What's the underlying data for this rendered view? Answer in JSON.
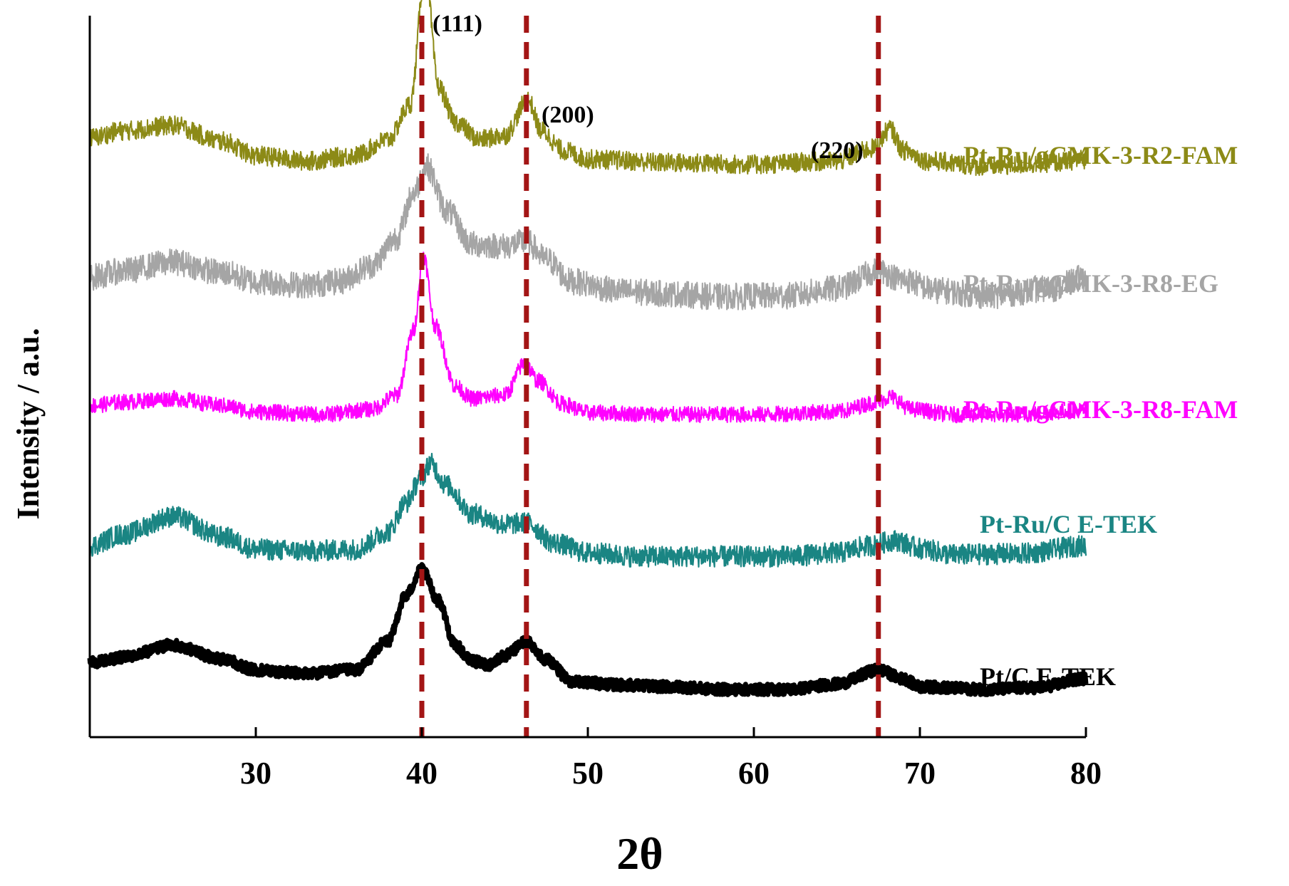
{
  "chart_data": {
    "type": "line",
    "title": "",
    "xlabel": "2θ",
    "ylabel": "Intensity / a.u.",
    "xlim": [
      20,
      80
    ],
    "xticks": [
      30,
      40,
      50,
      60,
      70,
      80
    ],
    "yticks": [],
    "grid": false,
    "colors": {
      "axis": "#000000",
      "reference_line": "#a31515",
      "Pt/C E-TEK": "#000000",
      "Pt-Ru/C E-TEK": "#1a8583",
      "Pt-Ru/gCMK-3-R8-FAM": "#ff00ff",
      "Pt-Ru/gCMK-3-R8-EG": "#a5a5a5",
      "Pt-Ru/gCMK-3-R2-FAM": "#8c8a16"
    },
    "reference_lines": [
      {
        "x": 40.0,
        "label": "(111)"
      },
      {
        "x": 46.3,
        "label": "(200)"
      },
      {
        "x": 67.5,
        "label": "(220)"
      }
    ],
    "series": [
      {
        "name": "Pt/C E-TEK",
        "label": "Pt/C E-TEK",
        "baseline": 0.0,
        "noise": 0.6,
        "points": [
          [
            20,
            3.0
          ],
          [
            22,
            3.6
          ],
          [
            25,
            5.0
          ],
          [
            28,
            3.4
          ],
          [
            30,
            2.2
          ],
          [
            33,
            1.8
          ],
          [
            36,
            2.2
          ],
          [
            38,
            5.5
          ],
          [
            39,
            10.5
          ],
          [
            40,
            13.5
          ],
          [
            41,
            10.0
          ],
          [
            42,
            5.0
          ],
          [
            43,
            3.2
          ],
          [
            44,
            2.8
          ],
          [
            45,
            3.8
          ],
          [
            46.3,
            5.4
          ],
          [
            47.5,
            3.4
          ],
          [
            49,
            0.9
          ],
          [
            52,
            0.5
          ],
          [
            55,
            0.3
          ],
          [
            58,
            0.0
          ],
          [
            62,
            0.0
          ],
          [
            65,
            0.6
          ],
          [
            67.5,
            2.2
          ],
          [
            69,
            1.2
          ],
          [
            70,
            0.3
          ],
          [
            74,
            0.0
          ],
          [
            77,
            0.2
          ],
          [
            80,
            1.2
          ]
        ]
      },
      {
        "name": "Pt-Ru/C E-TEK",
        "label": "Pt-Ru/C E-TEK",
        "baseline": 15.0,
        "noise": 1.2,
        "points": [
          [
            20,
            1.2
          ],
          [
            22,
            2.5
          ],
          [
            25,
            4.5
          ],
          [
            28,
            2.2
          ],
          [
            30,
            0.8
          ],
          [
            33,
            0.6
          ],
          [
            36,
            0.8
          ],
          [
            38,
            2.8
          ],
          [
            39,
            6.0
          ],
          [
            40,
            9.0
          ],
          [
            40.5,
            10.5
          ],
          [
            41.5,
            8.0
          ],
          [
            43,
            4.8
          ],
          [
            45,
            3.6
          ],
          [
            46.3,
            3.8
          ],
          [
            48,
            1.5
          ],
          [
            50,
            0.4
          ],
          [
            53,
            0.0
          ],
          [
            57,
            0.0
          ],
          [
            62,
            0.0
          ],
          [
            65,
            0.4
          ],
          [
            67,
            1.2
          ],
          [
            68.5,
            1.8
          ],
          [
            70,
            0.9
          ],
          [
            72,
            0.2
          ],
          [
            76,
            0.3
          ],
          [
            80,
            1.2
          ]
        ]
      },
      {
        "name": "Pt-Ru/gCMK-3-R8-FAM",
        "label": "Pt-Ru/gCMK-3-R8-FAM",
        "baseline": 31.0,
        "noise": 0.9,
        "points": [
          [
            20,
            1.0
          ],
          [
            22,
            1.4
          ],
          [
            25,
            1.8
          ],
          [
            28,
            1.0
          ],
          [
            30,
            0.3
          ],
          [
            34,
            0.0
          ],
          [
            37,
            0.6
          ],
          [
            38.5,
            2.2
          ],
          [
            39.5,
            9.5
          ],
          [
            40.1,
            18.0
          ],
          [
            40.8,
            10.0
          ],
          [
            42,
            3.2
          ],
          [
            43,
            1.8
          ],
          [
            45,
            2.2
          ],
          [
            46.2,
            5.8
          ],
          [
            47,
            3.8
          ],
          [
            48.5,
            1.2
          ],
          [
            50,
            0.2
          ],
          [
            55,
            0.0
          ],
          [
            60,
            0.0
          ],
          [
            65,
            0.3
          ],
          [
            67.5,
            1.4
          ],
          [
            68.2,
            2.0
          ],
          [
            69.5,
            0.6
          ],
          [
            72,
            0.0
          ],
          [
            76,
            0.0
          ],
          [
            80,
            0.5
          ]
        ]
      },
      {
        "name": "Pt-Ru/gCMK-3-R8-EG",
        "label": "Pt-Ru/gCMK-3-R8-EG",
        "baseline": 44.0,
        "noise": 1.5,
        "points": [
          [
            20,
            2.5
          ],
          [
            22,
            3.2
          ],
          [
            25,
            4.2
          ],
          [
            28,
            3.0
          ],
          [
            30,
            2.0
          ],
          [
            33,
            1.6
          ],
          [
            35,
            2.0
          ],
          [
            37,
            3.8
          ],
          [
            38.5,
            7.0
          ],
          [
            39.5,
            12.0
          ],
          [
            40.3,
            15.0
          ],
          [
            41.5,
            10.0
          ],
          [
            43,
            6.2
          ],
          [
            45,
            6.0
          ],
          [
            46.3,
            6.5
          ],
          [
            47.5,
            4.5
          ],
          [
            49,
            2.0
          ],
          [
            52,
            0.9
          ],
          [
            55,
            0.6
          ],
          [
            58,
            0.3
          ],
          [
            62,
            0.4
          ],
          [
            65,
            1.2
          ],
          [
            67.5,
            3.2
          ],
          [
            69,
            2.2
          ],
          [
            71,
            1.0
          ],
          [
            74,
            0.4
          ],
          [
            78,
            1.2
          ],
          [
            80,
            2.5
          ]
        ]
      },
      {
        "name": "Pt-Ru/gCMK-3-R2-FAM",
        "label": "Pt-Ru/gCMK-3-R2-FAM",
        "baseline": 59.0,
        "noise": 1.1,
        "points": [
          [
            20,
            3.2
          ],
          [
            22,
            4.0
          ],
          [
            25,
            4.6
          ],
          [
            28,
            2.8
          ],
          [
            30,
            1.2
          ],
          [
            33,
            0.6
          ],
          [
            36,
            1.2
          ],
          [
            38,
            3.0
          ],
          [
            39.3,
            7.0
          ],
          [
            40.2,
            22.0
          ],
          [
            41,
            9.0
          ],
          [
            42,
            5.0
          ],
          [
            43.5,
            3.0
          ],
          [
            45,
            3.5
          ],
          [
            46.4,
            7.5
          ],
          [
            47.2,
            4.0
          ],
          [
            48.5,
            1.8
          ],
          [
            50,
            0.8
          ],
          [
            55,
            0.4
          ],
          [
            60,
            0.2
          ],
          [
            65,
            0.6
          ],
          [
            67.2,
            2.0
          ],
          [
            68.2,
            4.2
          ],
          [
            69,
            1.8
          ],
          [
            70.5,
            0.6
          ],
          [
            74,
            0.0
          ],
          [
            78,
            0.4
          ],
          [
            80,
            0.8
          ]
        ]
      }
    ],
    "label_text": {
      "xtick_30": "30",
      "xtick_40": "40",
      "xtick_50": "50",
      "xtick_60": "60",
      "xtick_70": "70",
      "xtick_80": "80"
    }
  }
}
